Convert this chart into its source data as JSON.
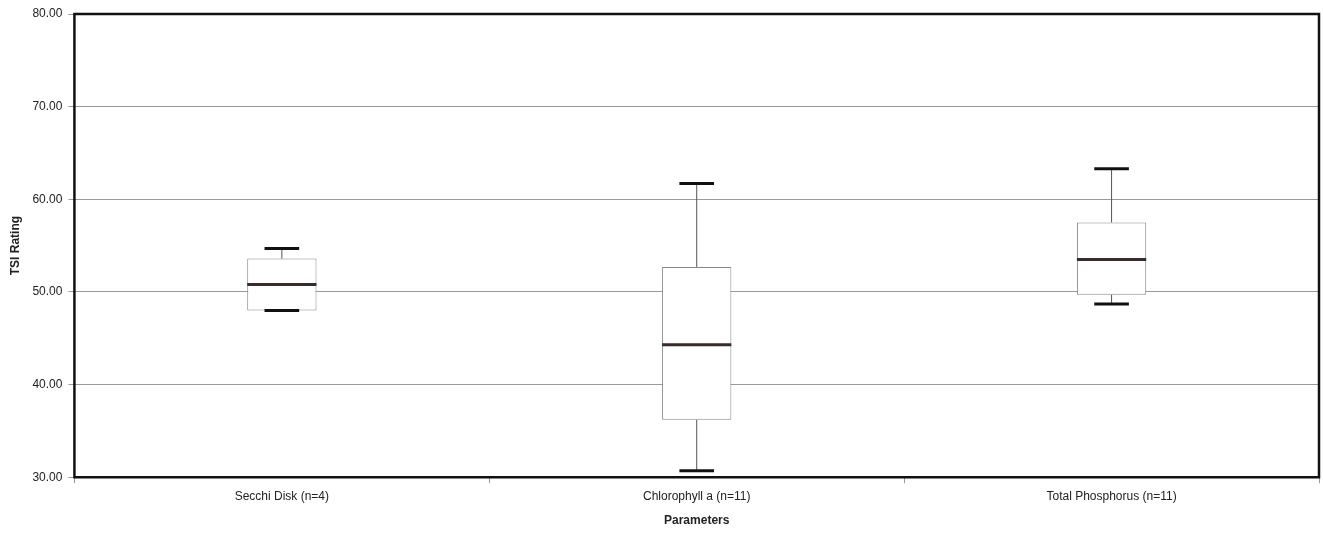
{
  "chart_data": {
    "type": "box",
    "xlabel": "Parameters",
    "ylabel": "TSI Rating",
    "categories": [
      "Secchi Disk (n=4)",
      "Chlorophyll a (n=11)",
      "Total Phosphorus (n=11)"
    ],
    "boxes": [
      {
        "low": 48.0,
        "q1": 48.0,
        "median": 50.8,
        "q3": 53.6,
        "high": 54.7
      },
      {
        "low": 30.7,
        "q1": 36.2,
        "median": 44.3,
        "q3": 52.7,
        "high": 61.7
      },
      {
        "low": 48.7,
        "q1": 49.7,
        "median": 53.5,
        "q3": 57.5,
        "high": 63.3
      }
    ],
    "ylim": [
      30,
      80
    ],
    "yticks": [
      {
        "value": 30,
        "label": "30.00"
      },
      {
        "value": 40,
        "label": "40.00"
      },
      {
        "value": 50,
        "label": "50.00"
      },
      {
        "value": 60,
        "label": "60.00"
      },
      {
        "value": 70,
        "label": "70.00"
      },
      {
        "value": 80,
        "label": "80.00"
      }
    ],
    "grid": "y"
  }
}
